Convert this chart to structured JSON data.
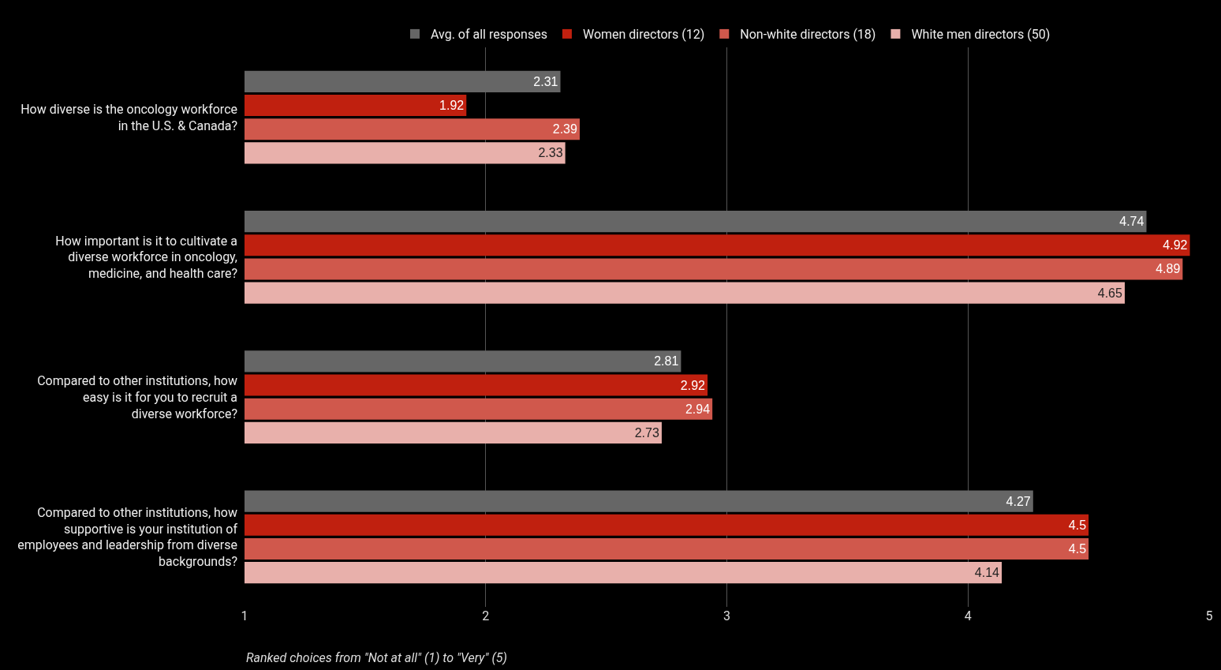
{
  "chart_data": {
    "type": "bar",
    "orientation": "horizontal",
    "categories": [
      "How diverse is the oncology workforce in the U.S. & Canada?",
      "How important is it to cultivate a diverse workforce in oncology, medicine, and health care?",
      "Compared to other institutions, how easy is it for you to recruit a diverse workforce?",
      "Compared to other institutions, how supportive is your institution of employees and leadership from diverse backgrounds?"
    ],
    "series": [
      {
        "name": "Avg. of all responses",
        "color": "#666666",
        "values": [
          2.31,
          4.74,
          2.81,
          4.27
        ]
      },
      {
        "name": "Women directors (12)",
        "color": "#c0200f",
        "values": [
          1.92,
          4.92,
          2.92,
          4.5
        ]
      },
      {
        "name": "Non-white directors (18)",
        "color": "#d0584c",
        "values": [
          2.39,
          4.89,
          2.94,
          4.5
        ]
      },
      {
        "name": "White men directors (50)",
        "color": "#e8b0ab",
        "values": [
          2.33,
          4.65,
          2.73,
          4.14
        ]
      }
    ],
    "xlim": [
      1,
      5
    ],
    "xticks": [
      1,
      2,
      3,
      4,
      5
    ],
    "xlabel": "Ranked choices from \"Not at all\" (1) to \"Very\" (5)",
    "grid": "x",
    "legend": "top",
    "data_labels": true
  }
}
